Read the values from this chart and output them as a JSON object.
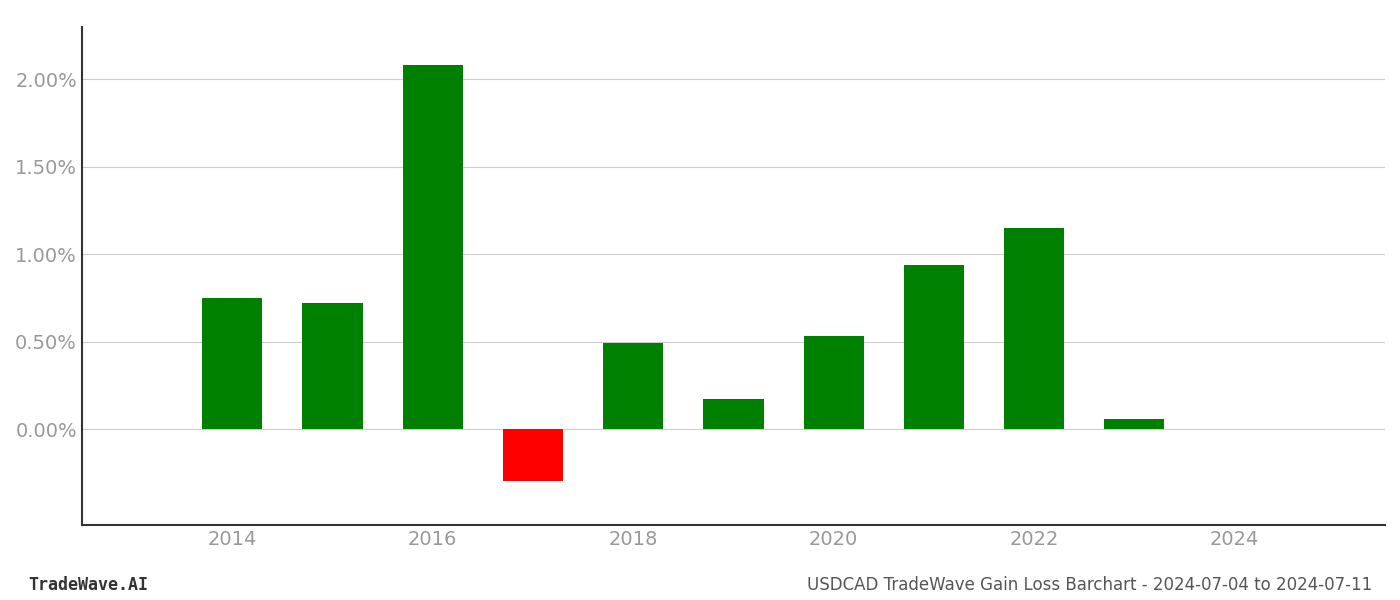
{
  "years": [
    2014,
    2015,
    2016,
    2017,
    2018,
    2019,
    2020,
    2021,
    2022,
    2023
  ],
  "values": [
    0.0075,
    0.0072,
    0.0208,
    -0.003,
    0.0049,
    0.0017,
    0.0053,
    0.0094,
    0.0115,
    0.0006
  ],
  "bar_colors": [
    "#008000",
    "#008000",
    "#008000",
    "#ff0000",
    "#008000",
    "#008000",
    "#008000",
    "#008000",
    "#008000",
    "#008000"
  ],
  "bar_width": 0.6,
  "xlim": [
    2012.5,
    2025.5
  ],
  "ylim": [
    -0.0055,
    0.023
  ],
  "yticks": [
    0.0,
    0.005,
    0.01,
    0.015,
    0.02
  ],
  "ytick_labels": [
    "0.00%",
    "0.50%",
    "1.00%",
    "1.50%",
    "2.00%"
  ],
  "xtick_positions": [
    2014,
    2016,
    2018,
    2020,
    2022,
    2024
  ],
  "xtick_labels": [
    "2014",
    "2016",
    "2018",
    "2020",
    "2022",
    "2024"
  ],
  "grid_color": "#cccccc",
  "background_color": "#ffffff",
  "footer_left": "TradeWave.AI",
  "footer_right": "USDCAD TradeWave Gain Loss Barchart - 2024-07-04 to 2024-07-11",
  "footer_fontsize": 12,
  "tick_label_color": "#999999",
  "left_spine_color": "#333333",
  "bottom_spine_color": "#333333",
  "tick_fontsize": 14
}
